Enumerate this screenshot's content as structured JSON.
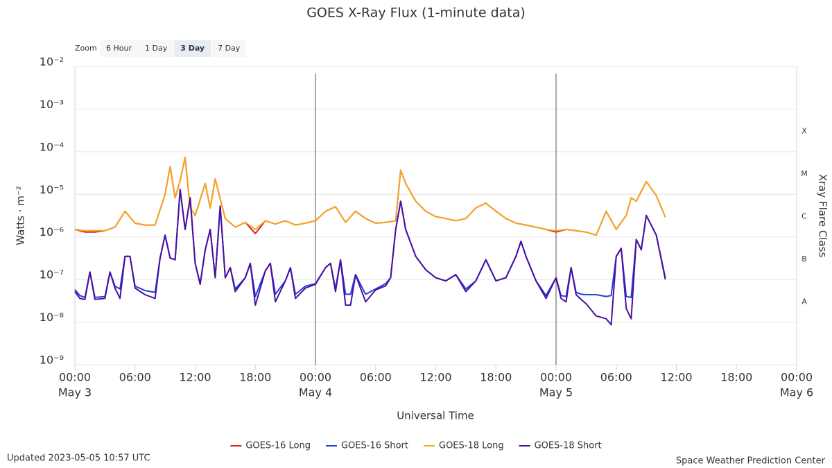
{
  "chart_data": {
    "type": "line",
    "title": "GOES X-Ray Flux (1-minute data)",
    "x_label": "Universal Time",
    "y_label": "Watts · m⁻²",
    "y2_label": "Xray Flare Class",
    "log_scale": true,
    "grid": true,
    "xlim": [
      0,
      72
    ],
    "xticks": [
      {
        "value": 0,
        "label": "00:00"
      },
      {
        "value": 6,
        "label": "06:00"
      },
      {
        "value": 12,
        "label": "12:00"
      },
      {
        "value": 18,
        "label": "18:00"
      },
      {
        "value": 24,
        "label": "00:00"
      },
      {
        "value": 30,
        "label": "06:00"
      },
      {
        "value": 36,
        "label": "12:00"
      },
      {
        "value": 42,
        "label": "18:00"
      },
      {
        "value": 48,
        "label": "00:00"
      },
      {
        "value": 54,
        "label": "06:00"
      },
      {
        "value": 60,
        "label": "12:00"
      },
      {
        "value": 66,
        "label": "18:00"
      },
      {
        "value": 72,
        "label": "00:00"
      }
    ],
    "x_day_labels": [
      {
        "value": 0,
        "label": "May 3"
      },
      {
        "value": 24,
        "label": "May 4"
      },
      {
        "value": 48,
        "label": "May 5"
      },
      {
        "value": 72,
        "label": "May 6"
      }
    ],
    "vlines": [
      24,
      48
    ],
    "ylim": [
      1e-09,
      0.01
    ],
    "yticks": [
      {
        "value": 0.01,
        "label": "10⁻²"
      },
      {
        "value": 0.001,
        "label": "10⁻³"
      },
      {
        "value": 0.0001,
        "label": "10⁻⁴"
      },
      {
        "value": 1e-05,
        "label": "10⁻⁵"
      },
      {
        "value": 1e-06,
        "label": "10⁻⁶"
      },
      {
        "value": 1e-07,
        "label": "10⁻⁷"
      },
      {
        "value": 1e-08,
        "label": "10⁻⁸"
      },
      {
        "value": 1e-09,
        "label": "10⁻⁹"
      }
    ],
    "flare_classes": [
      {
        "value": 0.0003,
        "label": "X"
      },
      {
        "value": 3e-05,
        "label": "M"
      },
      {
        "value": 3e-06,
        "label": "C"
      },
      {
        "value": 3e-07,
        "label": "B"
      },
      {
        "value": 3e-08,
        "label": "A"
      }
    ],
    "series": [
      {
        "name": "GOES-16 Long",
        "color": "#d62020",
        "x": [
          0,
          1,
          2,
          3,
          4,
          5,
          6,
          7,
          8,
          9,
          9.5,
          10,
          10.5,
          11,
          11.5,
          12,
          13,
          13.5,
          14,
          15,
          16,
          17,
          18,
          19,
          20,
          21,
          22,
          23,
          24,
          25,
          26,
          27,
          28,
          29,
          30,
          31,
          32,
          32.5,
          33,
          34,
          35,
          36,
          37,
          38,
          39,
          40,
          41,
          42,
          43,
          44,
          45,
          46,
          47,
          48,
          49,
          50,
          51,
          52,
          53,
          54,
          55,
          55.5,
          56,
          57,
          58,
          58.9
        ],
        "values": [
          1.5e-06,
          1.3e-06,
          1.3e-06,
          1.4e-06,
          1.7e-06,
          4e-06,
          2.1e-06,
          1.9e-06,
          1.9e-06,
          1e-05,
          4.5e-05,
          8.3e-06,
          2.1e-05,
          7.4e-05,
          4.8e-06,
          3.2e-06,
          1.8e-05,
          4.8e-06,
          2.3e-05,
          2.7e-06,
          1.7e-06,
          2.2e-06,
          1.2e-06,
          2.4e-06,
          2e-06,
          2.4e-06,
          1.9e-06,
          2.1e-06,
          2.4e-06,
          4e-06,
          5.1e-06,
          2.2e-06,
          4e-06,
          2.7e-06,
          2.1e-06,
          2.2e-06,
          2.4e-06,
          3.7e-05,
          1.8e-05,
          6.9e-06,
          4e-06,
          3e-06,
          2.7e-06,
          2.4e-06,
          2.7e-06,
          4.8e-06,
          6.2e-06,
          4e-06,
          2.7e-06,
          2.1e-06,
          1.9e-06,
          1.7e-06,
          1.5e-06,
          1.3e-06,
          1.5e-06,
          1.4e-06,
          1.3e-06,
          1.1e-06,
          4e-06,
          1.5e-06,
          3.2e-06,
          8.3e-06,
          6.9e-06,
          2e-05,
          9.3e-06,
          2.9e-06
        ]
      },
      {
        "name": "GOES-16 Short",
        "color": "#1f3fe0",
        "x": [
          0,
          0.5,
          1,
          1.5,
          2,
          3,
          3.5,
          4,
          4.5,
          5,
          5.5,
          6,
          7,
          8,
          8.5,
          9,
          9.5,
          10,
          10.5,
          11,
          11.5,
          12,
          12.5,
          13,
          13.5,
          14,
          14.5,
          15,
          15.5,
          16,
          17,
          17.5,
          18,
          19,
          19.5,
          20,
          21,
          21.5,
          22,
          23,
          24,
          25,
          25.5,
          26,
          26.5,
          27,
          27.5,
          28,
          29,
          30,
          31,
          31.5,
          32,
          32.5,
          33,
          34,
          35,
          36,
          37,
          38,
          39,
          40,
          41,
          42,
          43,
          44,
          44.5,
          45,
          46,
          47,
          48,
          48.5,
          49,
          49.5,
          50,
          50.5,
          51,
          52,
          53,
          53.5,
          54,
          54.5,
          55,
          55.5,
          56,
          56.5,
          57,
          58,
          58.9
        ],
        "values": [
          5.8e-08,
          4.2e-08,
          3.8e-08,
          1.5e-07,
          3.8e-08,
          4e-08,
          1.5e-07,
          7e-08,
          6e-08,
          3.5e-07,
          3.5e-07,
          7e-08,
          5.5e-08,
          5e-08,
          3.2e-07,
          1.1e-06,
          3.2e-07,
          2.9e-07,
          1.3e-05,
          1.5e-06,
          8.3e-06,
          2.4e-07,
          8e-08,
          5e-07,
          1.5e-06,
          1.1e-07,
          5.3e-06,
          1.1e-07,
          1.9e-07,
          6e-08,
          1.1e-07,
          2.4e-07,
          4e-08,
          1.6e-07,
          2.4e-07,
          4.5e-08,
          9.3e-08,
          1.9e-07,
          4.5e-08,
          7e-08,
          8e-08,
          1.9e-07,
          2.4e-07,
          6e-08,
          2.9e-07,
          4.5e-08,
          4.5e-08,
          1.3e-07,
          4.5e-08,
          6e-08,
          8e-08,
          1.1e-07,
          1.5e-06,
          6.9e-06,
          1.5e-06,
          3.5e-07,
          1.7e-07,
          1.1e-07,
          9.3e-08,
          1.3e-07,
          6e-08,
          9.3e-08,
          2.9e-07,
          9.3e-08,
          1.1e-07,
          3.5e-07,
          7.9e-07,
          3.5e-07,
          9.3e-08,
          4.2e-08,
          1.1e-07,
          4.2e-08,
          4e-08,
          1.9e-07,
          5e-08,
          4.5e-08,
          4.4e-08,
          4.4e-08,
          4e-08,
          4.2e-08,
          3.5e-07,
          5.4e-07,
          4e-08,
          3.8e-08,
          8.7e-07,
          5e-07,
          3.2e-06,
          1.1e-06,
          1.1e-07
        ]
      },
      {
        "name": "GOES-18 Long",
        "color": "#f5a623",
        "x": [
          0,
          1,
          2,
          3,
          4,
          5,
          6,
          7,
          8,
          9,
          9.5,
          10,
          10.5,
          11,
          11.5,
          12,
          13,
          13.5,
          14,
          15,
          16,
          17,
          18,
          19,
          20,
          21,
          22,
          23,
          24,
          25,
          26,
          27,
          28,
          29,
          30,
          31,
          32,
          32.5,
          33,
          34,
          35,
          36,
          37,
          38,
          39,
          40,
          41,
          42,
          43,
          44,
          45,
          46,
          47,
          48,
          49,
          50,
          51,
          52,
          53,
          54,
          55,
          55.5,
          56,
          57,
          58,
          58.9
        ],
        "values": [
          1.5e-06,
          1.4e-06,
          1.4e-06,
          1.4e-06,
          1.7e-06,
          4e-06,
          2.1e-06,
          1.9e-06,
          1.9e-06,
          1e-05,
          4.5e-05,
          8.3e-06,
          2.1e-05,
          7.4e-05,
          4.8e-06,
          3.2e-06,
          1.8e-05,
          4.8e-06,
          2.3e-05,
          2.7e-06,
          1.7e-06,
          2.2e-06,
          1.5e-06,
          2.4e-06,
          2e-06,
          2.4e-06,
          1.9e-06,
          2.1e-06,
          2.4e-06,
          4e-06,
          5.1e-06,
          2.2e-06,
          4e-06,
          2.7e-06,
          2.1e-06,
          2.2e-06,
          2.4e-06,
          3.7e-05,
          1.8e-05,
          6.9e-06,
          4e-06,
          3e-06,
          2.7e-06,
          2.4e-06,
          2.7e-06,
          4.8e-06,
          6.2e-06,
          4e-06,
          2.7e-06,
          2.1e-06,
          1.9e-06,
          1.7e-06,
          1.5e-06,
          1.4e-06,
          1.5e-06,
          1.4e-06,
          1.3e-06,
          1.1e-06,
          4e-06,
          1.5e-06,
          3.2e-06,
          8.3e-06,
          6.9e-06,
          2e-05,
          9.3e-06,
          2.9e-06
        ]
      },
      {
        "name": "GOES-18 Short",
        "color": "#4b0f9e",
        "x": [
          0,
          0.5,
          1,
          1.5,
          2,
          3,
          3.5,
          4,
          4.5,
          5,
          5.5,
          6,
          7,
          8,
          8.5,
          9,
          9.5,
          10,
          10.5,
          11,
          11.5,
          12,
          12.5,
          13,
          13.5,
          14,
          14.5,
          15,
          15.5,
          16,
          17,
          17.5,
          18,
          19,
          19.5,
          20,
          21,
          21.5,
          22,
          23,
          24,
          25,
          25.5,
          26,
          26.5,
          27,
          27.5,
          28,
          29,
          30,
          31,
          31.5,
          32,
          32.5,
          33,
          34,
          35,
          36,
          37,
          38,
          39,
          40,
          41,
          42,
          43,
          44,
          44.5,
          45,
          46,
          47,
          48,
          48.5,
          49,
          49.5,
          50,
          50.5,
          51,
          52,
          53,
          53.5,
          54,
          54.5,
          55,
          55.5,
          56,
          56.5,
          57,
          58,
          58.9
        ],
        "values": [
          5.2e-08,
          3.6e-08,
          3.4e-08,
          1.5e-07,
          3.4e-08,
          3.6e-08,
          1.5e-07,
          6.3e-08,
          3.6e-08,
          3.5e-07,
          3.5e-07,
          6.3e-08,
          4.4e-08,
          3.6e-08,
          3.2e-07,
          1.1e-06,
          3.2e-07,
          2.9e-07,
          1.3e-05,
          1.5e-06,
          8.3e-06,
          2.4e-07,
          7.7e-08,
          5e-07,
          1.5e-06,
          1.1e-07,
          5.3e-06,
          1.1e-07,
          1.9e-07,
          5.2e-08,
          1.1e-07,
          2.4e-07,
          2.5e-08,
          1.6e-07,
          2.4e-07,
          3e-08,
          9.3e-08,
          1.9e-07,
          3.6e-08,
          6.3e-08,
          7.7e-08,
          1.9e-07,
          2.4e-07,
          5.2e-08,
          2.9e-07,
          2.5e-08,
          2.5e-08,
          1.3e-07,
          3e-08,
          5.7e-08,
          7.1e-08,
          1.1e-07,
          1.5e-06,
          6.9e-06,
          1.5e-06,
          3.5e-07,
          1.7e-07,
          1.1e-07,
          9.3e-08,
          1.3e-07,
          5.2e-08,
          9.3e-08,
          2.9e-07,
          9.3e-08,
          1.1e-07,
          3.5e-07,
          7.9e-07,
          3.5e-07,
          9.3e-08,
          3.6e-08,
          1.1e-07,
          3.6e-08,
          3e-08,
          1.9e-07,
          4.4e-08,
          3.4e-08,
          2.7e-08,
          1.4e-08,
          1.2e-08,
          8.7e-09,
          3.5e-07,
          5.4e-07,
          2.1e-08,
          1.2e-08,
          8.7e-07,
          5e-07,
          3.2e-06,
          1.1e-06,
          1e-07
        ]
      }
    ]
  },
  "zoom": {
    "label": "Zoom",
    "buttons": [
      "6 Hour",
      "1 Day",
      "3 Day",
      "7 Day"
    ],
    "selected": 2
  },
  "footer": {
    "updated": "Updated 2023-05-05 10:57 UTC",
    "credit": "Space Weather Prediction Center"
  }
}
